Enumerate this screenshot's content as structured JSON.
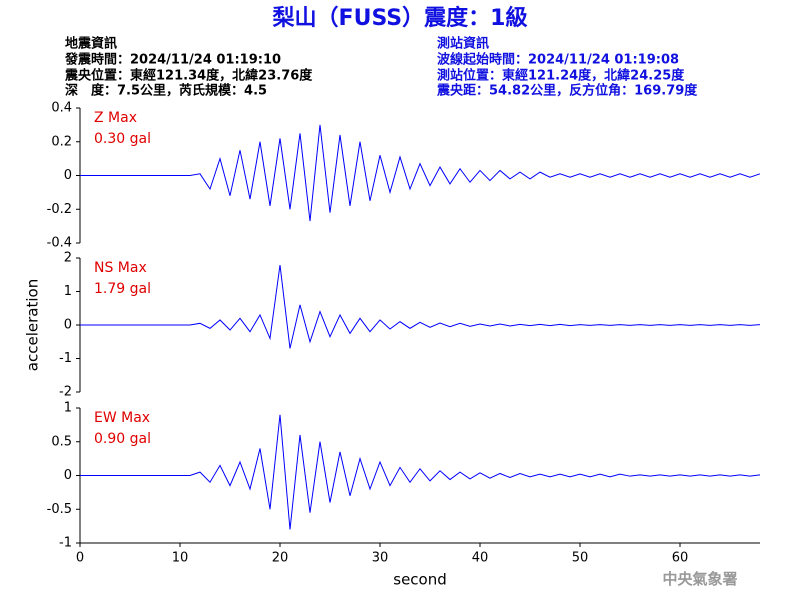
{
  "title": "梨山（FUSS）震度：1級",
  "info_left": [
    "地震資訊",
    "發震時間：2024/11/24 01:19:10",
    "震央位置：東經121.34度，北緯23.76度",
    "深　度：7.5公里，芮氏規模：4.5"
  ],
  "info_right": [
    "測站資訊",
    "波線起始時間：2024/11/24 01:19:08",
    "測站位置：東經121.24度，北緯24.25度",
    "震央距：54.82公里，反方位角：169.79度"
  ],
  "footer": "中央氣象署",
  "chart_data": [
    {
      "type": "line",
      "max_label": "Z Max",
      "max_value_label": "0.30 gal",
      "color": "#0000ff",
      "xlim": [
        0,
        68
      ],
      "ylim": [
        -0.4,
        0.4
      ],
      "yticks": [
        -0.4,
        -0.2,
        0,
        0.2,
        0.4
      ],
      "x": [
        0,
        1,
        2,
        3,
        4,
        5,
        6,
        7,
        8,
        9,
        10,
        11,
        12,
        13,
        14,
        15,
        16,
        17,
        18,
        19,
        20,
        21,
        22,
        23,
        24,
        25,
        26,
        27,
        28,
        29,
        30,
        31,
        32,
        33,
        34,
        35,
        36,
        37,
        38,
        39,
        40,
        41,
        42,
        43,
        44,
        45,
        46,
        47,
        48,
        49,
        50,
        51,
        52,
        53,
        54,
        55,
        56,
        57,
        58,
        59,
        60,
        61,
        62,
        63,
        64,
        65,
        66,
        67,
        68
      ],
      "values": [
        0,
        0,
        0,
        0,
        0,
        0,
        0,
        0,
        0,
        0,
        0,
        0,
        0.01,
        -0.08,
        0.1,
        -0.12,
        0.15,
        -0.14,
        0.2,
        -0.18,
        0.22,
        -0.2,
        0.25,
        -0.27,
        0.3,
        -0.22,
        0.24,
        -0.18,
        0.2,
        -0.15,
        0.12,
        -0.1,
        0.11,
        -0.08,
        0.07,
        -0.06,
        0.05,
        -0.05,
        0.04,
        -0.04,
        0.03,
        -0.03,
        0.03,
        -0.02,
        0.02,
        -0.02,
        0.02,
        -0.01,
        0.01,
        -0.01,
        0.01,
        -0.01,
        0.01,
        -0.01,
        0.01,
        -0.01,
        0.01,
        -0.01,
        0.01,
        -0.01,
        0.01,
        -0.01,
        0.01,
        -0.01,
        0.01,
        -0.01,
        0.01,
        -0.01,
        0.01
      ]
    },
    {
      "type": "line",
      "max_label": "NS Max",
      "max_value_label": "1.79 gal",
      "color": "#0000ff",
      "ylabel": "acceleration",
      "xlim": [
        0,
        68
      ],
      "ylim": [
        -2,
        2
      ],
      "yticks": [
        -2,
        -1,
        0,
        1,
        2
      ],
      "x": [
        0,
        1,
        2,
        3,
        4,
        5,
        6,
        7,
        8,
        9,
        10,
        11,
        12,
        13,
        14,
        15,
        16,
        17,
        18,
        19,
        20,
        21,
        22,
        23,
        24,
        25,
        26,
        27,
        28,
        29,
        30,
        31,
        32,
        33,
        34,
        35,
        36,
        37,
        38,
        39,
        40,
        41,
        42,
        43,
        44,
        45,
        46,
        47,
        48,
        49,
        50,
        51,
        52,
        53,
        54,
        55,
        56,
        57,
        58,
        59,
        60,
        61,
        62,
        63,
        64,
        65,
        66,
        67,
        68
      ],
      "values": [
        0,
        0,
        0,
        0,
        0,
        0,
        0,
        0,
        0,
        0,
        0,
        0,
        0.05,
        -0.1,
        0.15,
        -0.15,
        0.2,
        -0.2,
        0.3,
        -0.4,
        1.79,
        -0.7,
        0.6,
        -0.5,
        0.4,
        -0.35,
        0.3,
        -0.25,
        0.2,
        -0.2,
        0.15,
        -0.12,
        0.1,
        -0.1,
        0.08,
        -0.07,
        0.06,
        -0.05,
        0.05,
        -0.04,
        0.03,
        -0.03,
        0.03,
        -0.03,
        0.02,
        -0.02,
        0.02,
        -0.02,
        0.02,
        -0.02,
        0.01,
        -0.01,
        0.01,
        -0.01,
        0.01,
        -0.01,
        0.01,
        -0.01,
        0.01,
        -0.01,
        0.01,
        -0.01,
        0.01,
        -0.01,
        0.01,
        -0.01,
        0.01,
        -0.01,
        0.01
      ]
    },
    {
      "type": "line",
      "max_label": "EW Max",
      "max_value_label": "0.90 gal",
      "color": "#0000ff",
      "xlabel": "second",
      "xlim": [
        0,
        68
      ],
      "xticks": [
        0,
        10,
        20,
        30,
        40,
        50,
        60
      ],
      "ylim": [
        -1,
        1
      ],
      "yticks": [
        -1,
        -0.5,
        0,
        0.5,
        1
      ],
      "x": [
        0,
        1,
        2,
        3,
        4,
        5,
        6,
        7,
        8,
        9,
        10,
        11,
        12,
        13,
        14,
        15,
        16,
        17,
        18,
        19,
        20,
        21,
        22,
        23,
        24,
        25,
        26,
        27,
        28,
        29,
        30,
        31,
        32,
        33,
        34,
        35,
        36,
        37,
        38,
        39,
        40,
        41,
        42,
        43,
        44,
        45,
        46,
        47,
        48,
        49,
        50,
        51,
        52,
        53,
        54,
        55,
        56,
        57,
        58,
        59,
        60,
        61,
        62,
        63,
        64,
        65,
        66,
        67,
        68
      ],
      "values": [
        0,
        0,
        0,
        0,
        0,
        0,
        0,
        0,
        0,
        0,
        0,
        0,
        0.05,
        -0.1,
        0.15,
        -0.15,
        0.2,
        -0.2,
        0.4,
        -0.5,
        0.9,
        -0.8,
        0.6,
        -0.55,
        0.5,
        -0.4,
        0.35,
        -0.3,
        0.25,
        -0.2,
        0.2,
        -0.15,
        0.12,
        -0.1,
        0.1,
        -0.08,
        0.07,
        -0.06,
        0.05,
        -0.05,
        0.04,
        -0.04,
        0.03,
        -0.03,
        0.03,
        -0.02,
        0.02,
        -0.02,
        0.02,
        -0.02,
        0.02,
        -0.02,
        0.02,
        -0.02,
        0.02,
        -0.01,
        0.01,
        -0.01,
        0.01,
        -0.01,
        0.01,
        -0.01,
        0.01,
        -0.01,
        0.01,
        -0.01,
        0.01,
        -0.01,
        0.01
      ]
    }
  ]
}
